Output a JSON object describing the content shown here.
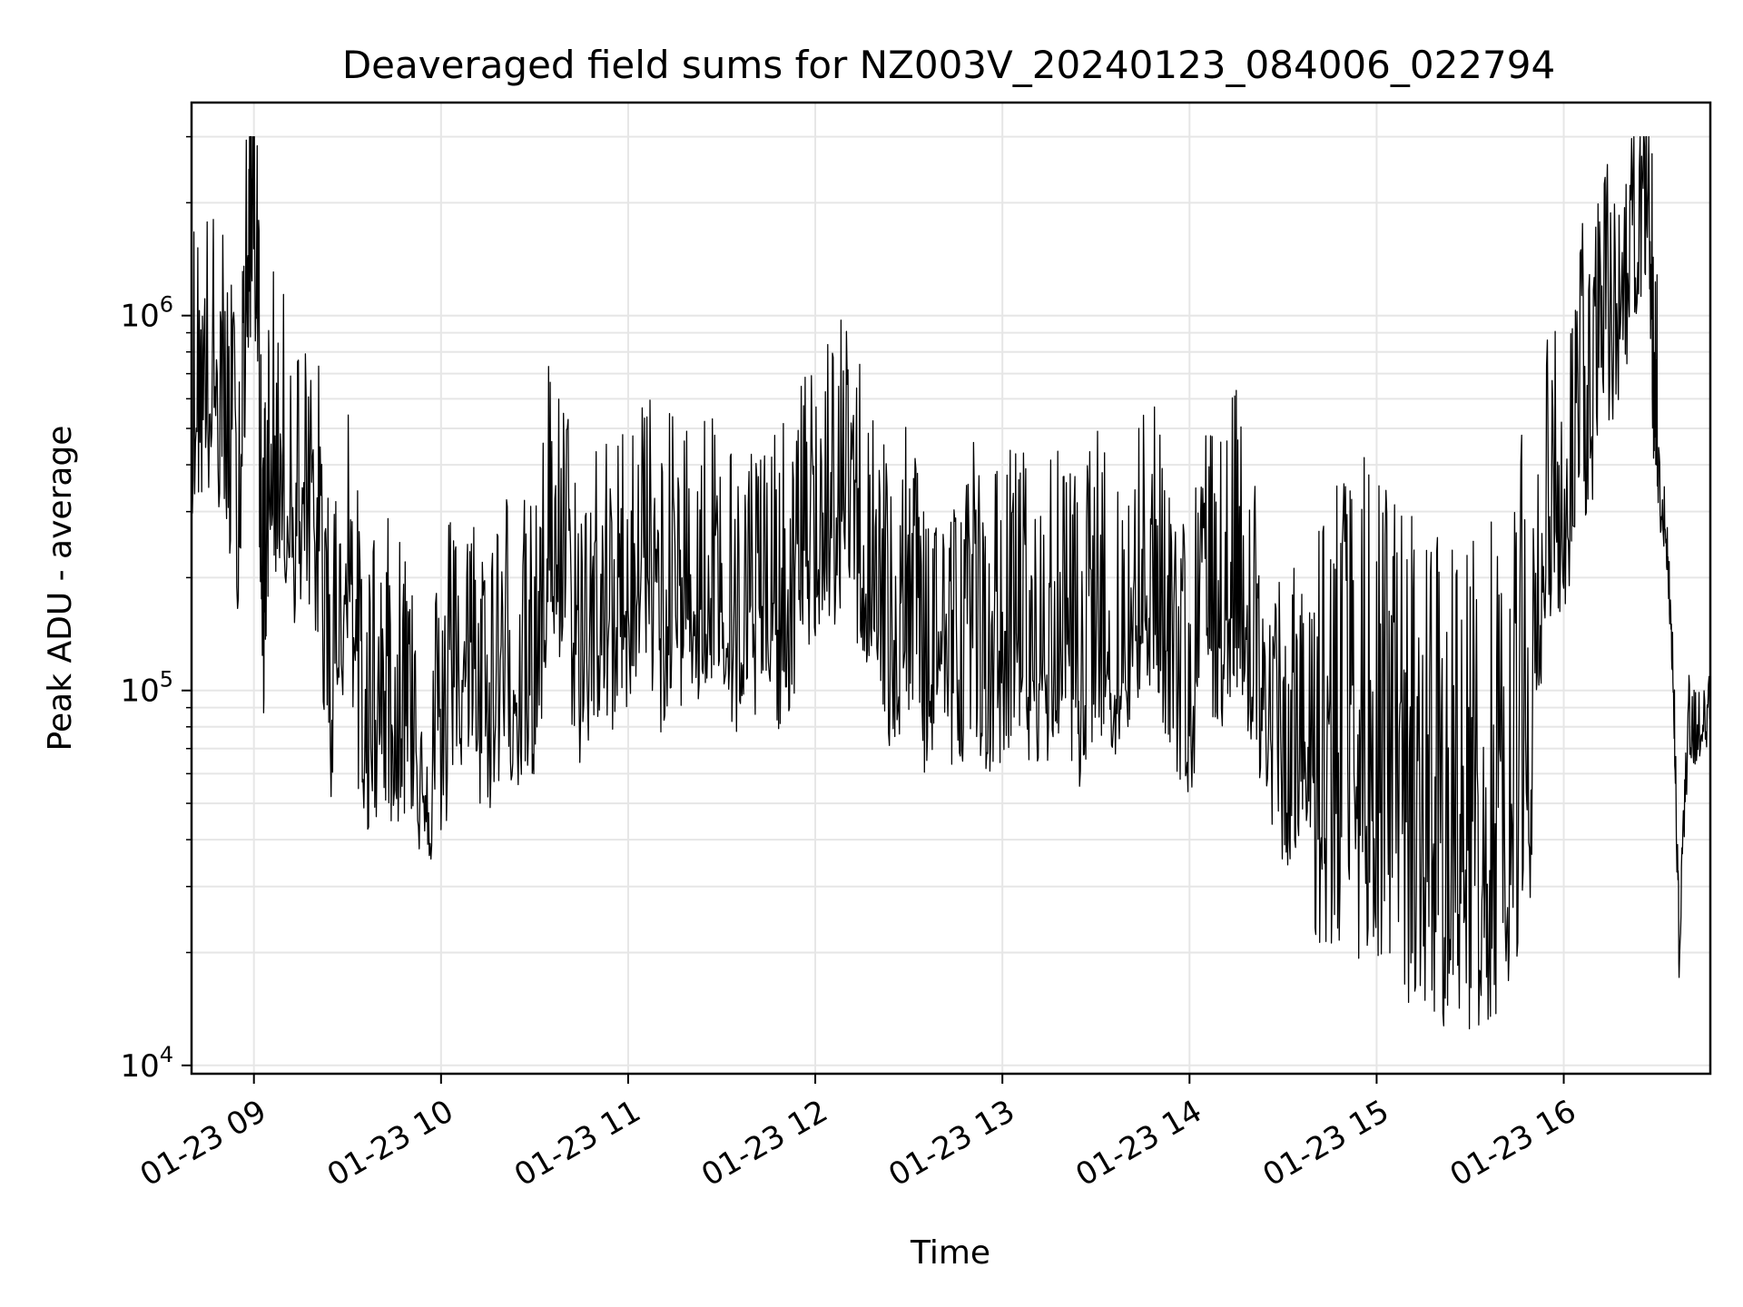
{
  "chart_data": {
    "type": "line",
    "title": "Deaveraged field sums for NZ003V_20240123_084006_022794",
    "xlabel": "Time",
    "ylabel": "Peak ADU - average",
    "yscale": "log",
    "ylim": [
      9500,
      3700000
    ],
    "xlim": [
      "01-23 08:40",
      "01-23 16:47"
    ],
    "grid": true,
    "line_color": "#000000",
    "x_ticks": [
      "01-23 09",
      "01-23 10",
      "01-23 11",
      "01-23 12",
      "01-23 13",
      "01-23 14",
      "01-23 15",
      "01-23 16"
    ],
    "y_ticks": [
      {
        "base": "10",
        "exp": "4",
        "value": 10000
      },
      {
        "base": "10",
        "exp": "5",
        "value": 100000
      },
      {
        "base": "10",
        "exp": "6",
        "value": 1000000
      }
    ],
    "series": [
      {
        "x": [
          "01-23 08:40",
          "01-23 08:45",
          "01-23 08:50",
          "01-23 08:55",
          "01-23 08:58",
          "01-23 09:00",
          "01-23 09:03",
          "01-23 09:05",
          "01-23 09:10",
          "01-23 09:15",
          "01-23 09:20",
          "01-23 09:25",
          "01-23 09:30",
          "01-23 09:35",
          "01-23 09:40",
          "01-23 09:45",
          "01-23 09:50",
          "01-23 09:55",
          "01-23 10:00",
          "01-23 10:05",
          "01-23 10:10",
          "01-23 10:15",
          "01-23 10:20",
          "01-23 10:25",
          "01-23 10:30",
          "01-23 10:35",
          "01-23 10:40",
          "01-23 10:45",
          "01-23 10:50",
          "01-23 10:55",
          "01-23 11:00",
          "01-23 11:05",
          "01-23 11:10",
          "01-23 11:15",
          "01-23 11:20",
          "01-23 11:25",
          "01-23 11:30",
          "01-23 11:35",
          "01-23 11:40",
          "01-23 11:45",
          "01-23 11:50",
          "01-23 11:55",
          "01-23 12:00",
          "01-23 12:05",
          "01-23 12:10",
          "01-23 12:15",
          "01-23 12:20",
          "01-23 12:25",
          "01-23 12:30",
          "01-23 12:35",
          "01-23 12:40",
          "01-23 12:45",
          "01-23 12:50",
          "01-23 12:55",
          "01-23 13:00",
          "01-23 13:05",
          "01-23 13:10",
          "01-23 13:15",
          "01-23 13:20",
          "01-23 13:25",
          "01-23 13:30",
          "01-23 13:35",
          "01-23 13:40",
          "01-23 13:45",
          "01-23 13:50",
          "01-23 13:55",
          "01-23 14:00",
          "01-23 14:05",
          "01-23 14:10",
          "01-23 14:15",
          "01-23 14:20",
          "01-23 14:25",
          "01-23 14:30",
          "01-23 14:35",
          "01-23 14:40",
          "01-23 14:45",
          "01-23 14:50",
          "01-23 14:55",
          "01-23 15:00",
          "01-23 15:05",
          "01-23 15:10",
          "01-23 15:15",
          "01-23 15:20",
          "01-23 15:25",
          "01-23 15:30",
          "01-23 15:35",
          "01-23 15:40",
          "01-23 15:45",
          "01-23 15:50",
          "01-23 15:55",
          "01-23 16:00",
          "01-23 16:05",
          "01-23 16:10",
          "01-23 16:15",
          "01-23 16:20",
          "01-23 16:25",
          "01-23 16:28",
          "01-23 16:30",
          "01-23 16:33",
          "01-23 16:35",
          "01-23 16:37",
          "01-23 16:40",
          "01-23 16:43",
          "01-23 16:47"
        ],
        "y": [
          550000,
          600000,
          500000,
          300000,
          1200000,
          2300000,
          150000,
          400000,
          330000,
          250000,
          260000,
          90000,
          230000,
          65000,
          90000,
          80000,
          85000,
          60000,
          65000,
          120000,
          90000,
          85000,
          110000,
          100000,
          90000,
          250000,
          180000,
          110000,
          150000,
          130000,
          170000,
          220000,
          140000,
          170000,
          160000,
          170000,
          200000,
          110000,
          150000,
          140000,
          150000,
          190000,
          250000,
          260000,
          300000,
          220000,
          200000,
          100000,
          160000,
          110000,
          130000,
          100000,
          150000,
          110000,
          120000,
          150000,
          100000,
          120000,
          140000,
          100000,
          150000,
          120000,
          110000,
          200000,
          160000,
          120000,
          80000,
          160000,
          140000,
          190000,
          130000,
          70000,
          65000,
          60000,
          60000,
          55000,
          50000,
          55000,
          50000,
          45000,
          40000,
          38000,
          36000,
          35000,
          34000,
          36000,
          40000,
          55000,
          80000,
          300000,
          260000,
          500000,
          600000,
          800000,
          1100000,
          1600000,
          1200000,
          350000,
          250000,
          120000,
          20000,
          80000,
          70000,
          90000
        ]
      }
    ]
  }
}
